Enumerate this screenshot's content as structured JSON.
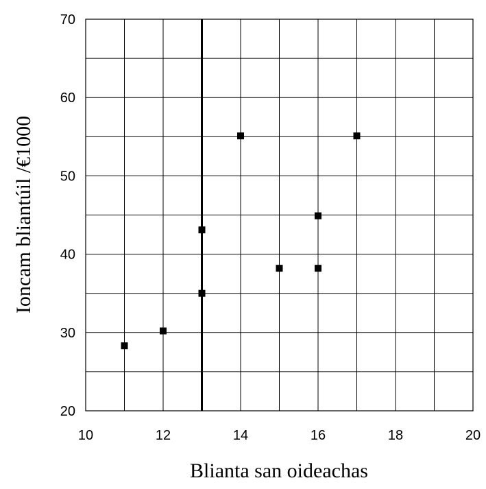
{
  "chart_data": {
    "type": "scatter",
    "title": "",
    "xlabel": "Blianta san oideachas",
    "ylabel": "Ioncam bliantúil /€1000",
    "xlim": [
      10,
      20
    ],
    "ylim": [
      20,
      70
    ],
    "x_ticks": [
      "10",
      "12",
      "14",
      "16",
      "18",
      "20"
    ],
    "y_ticks": [
      "20",
      "30",
      "40",
      "50",
      "60",
      "70"
    ],
    "x_grid_step": 1,
    "y_grid_step": 5,
    "grid": true,
    "legend": "none",
    "reference_line_x": 13,
    "marker": "square",
    "color": "#000000",
    "points": [
      {
        "x": 11,
        "y": 28.3
      },
      {
        "x": 12,
        "y": 30.2
      },
      {
        "x": 13,
        "y": 35.0
      },
      {
        "x": 13,
        "y": 43.1
      },
      {
        "x": 14,
        "y": 55.1
      },
      {
        "x": 15,
        "y": 38.2
      },
      {
        "x": 16,
        "y": 38.2
      },
      {
        "x": 16,
        "y": 44.9
      },
      {
        "x": 17,
        "y": 55.1
      }
    ]
  }
}
